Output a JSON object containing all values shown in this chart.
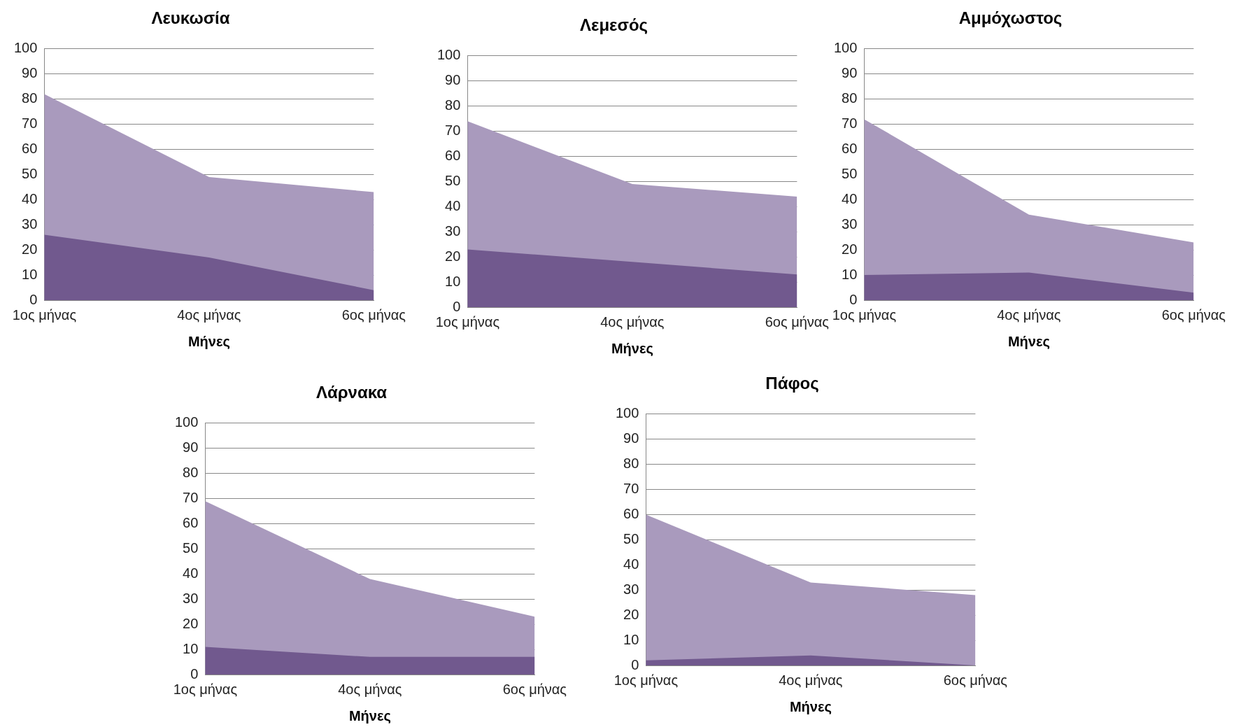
{
  "chart_data": [
    {
      "type": "area",
      "title": "Λευκωσία",
      "xlabel": "Μήνες",
      "categories": [
        "1ος μήνας",
        "4ος μήνας",
        "6ος μήνας"
      ],
      "ylim": [
        0,
        100
      ],
      "yticks": [
        0,
        10,
        20,
        30,
        40,
        50,
        60,
        70,
        80,
        90,
        100
      ],
      "grid": "y",
      "legend": false,
      "marker": "none",
      "series": [
        {
          "color": "#a99abd",
          "values": [
            82,
            49,
            43
          ]
        },
        {
          "color": "#71598e",
          "values": [
            26,
            17,
            4
          ]
        }
      ]
    },
    {
      "type": "area",
      "title": "Λεμεσός",
      "xlabel": "Μήνες",
      "categories": [
        "1ος μήνας",
        "4ος μήνας",
        "6ος μήνας"
      ],
      "ylim": [
        0,
        100
      ],
      "yticks": [
        0,
        10,
        20,
        30,
        40,
        50,
        60,
        70,
        80,
        90,
        100
      ],
      "grid": "y",
      "legend": false,
      "marker": "none",
      "series": [
        {
          "color": "#a99abd",
          "values": [
            74,
            49,
            44
          ]
        },
        {
          "color": "#71598e",
          "values": [
            23,
            18,
            13
          ]
        }
      ]
    },
    {
      "type": "area",
      "title": "Αμμόχωστος",
      "xlabel": "Μήνες",
      "categories": [
        "1ος μήνας",
        "4ος μήνας",
        "6ος μήνας"
      ],
      "ylim": [
        0,
        100
      ],
      "yticks": [
        0,
        10,
        20,
        30,
        40,
        50,
        60,
        70,
        80,
        90,
        100
      ],
      "grid": "y",
      "legend": false,
      "marker": "none",
      "series": [
        {
          "color": "#a99abd",
          "values": [
            72,
            34,
            23
          ]
        },
        {
          "color": "#71598e",
          "values": [
            10,
            11,
            3
          ]
        }
      ]
    },
    {
      "type": "area",
      "title": "Λάρνακα",
      "xlabel": "Μήνες",
      "categories": [
        "1ος μήνας",
        "4ος μήνας",
        "6ος μήνας"
      ],
      "ylim": [
        0,
        100
      ],
      "yticks": [
        0,
        10,
        20,
        30,
        40,
        50,
        60,
        70,
        80,
        90,
        100
      ],
      "grid": "y",
      "legend": false,
      "marker": "none",
      "series": [
        {
          "color": "#a99abd",
          "values": [
            69,
            38,
            23
          ]
        },
        {
          "color": "#71598e",
          "values": [
            11,
            7,
            7
          ]
        }
      ]
    },
    {
      "type": "area",
      "title": "Πάφος",
      "xlabel": "Μήνες",
      "categories": [
        "1ος μήνας",
        "4ος μήνας",
        "6ος μήνας"
      ],
      "ylim": [
        0,
        100
      ],
      "yticks": [
        0,
        10,
        20,
        30,
        40,
        50,
        60,
        70,
        80,
        90,
        100
      ],
      "grid": "y",
      "legend": false,
      "marker": "none",
      "series": [
        {
          "color": "#a99abd",
          "values": [
            60,
            33,
            28
          ]
        },
        {
          "color": "#71598e",
          "values": [
            2,
            4,
            0
          ]
        }
      ]
    }
  ]
}
